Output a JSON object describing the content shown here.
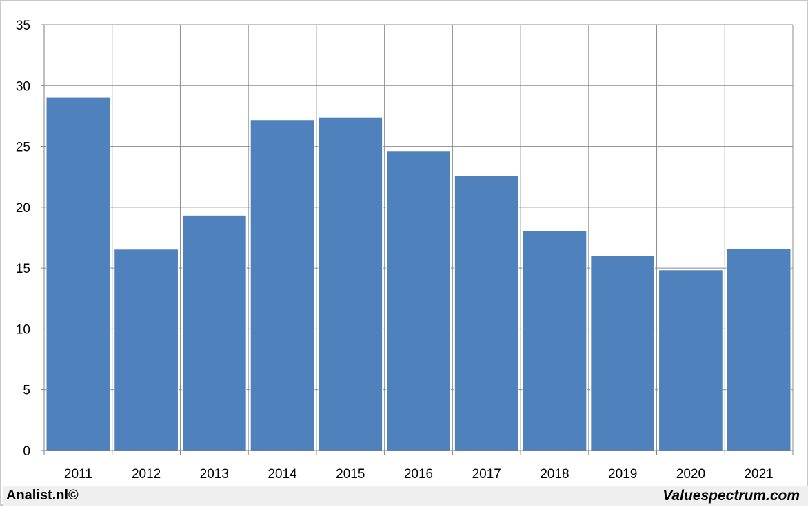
{
  "chart_data": {
    "type": "bar",
    "categories": [
      "2011",
      "2012",
      "2013",
      "2014",
      "2015",
      "2016",
      "2017",
      "2018",
      "2019",
      "2020",
      "2021"
    ],
    "values": [
      29.05,
      16.55,
      19.35,
      27.2,
      27.4,
      24.65,
      22.6,
      18.05,
      16.05,
      14.85,
      16.6
    ],
    "title": "",
    "xlabel": "",
    "ylabel": "",
    "ylim": [
      0,
      35
    ],
    "yticks": [
      0,
      5,
      10,
      15,
      20,
      25,
      30,
      35
    ],
    "grid": true,
    "legend": "none",
    "bar_color": "#4f81bd"
  },
  "footer": {
    "left": "Analist.nl©",
    "right": "Valuespectrum.com"
  }
}
